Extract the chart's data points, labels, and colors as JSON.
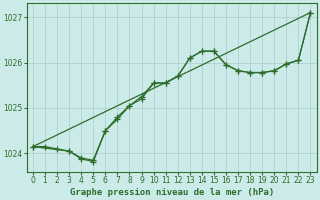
{
  "title": "Graphe pression niveau de la mer (hPa)",
  "bg_color": "#cceae8",
  "grid_color": "#aacccc",
  "line_color": "#2d6e2d",
  "xlim": [
    -0.5,
    23.5
  ],
  "ylim": [
    1023.6,
    1027.3
  ],
  "yticks": [
    1024,
    1025,
    1026,
    1027
  ],
  "xticks": [
    0,
    1,
    2,
    3,
    4,
    5,
    6,
    7,
    8,
    9,
    10,
    11,
    12,
    13,
    14,
    15,
    16,
    17,
    18,
    19,
    20,
    21,
    22,
    23
  ],
  "series1_x": [
    0,
    1,
    2,
    3,
    4,
    5,
    6,
    7,
    8,
    9,
    10,
    11,
    12,
    13,
    14,
    15,
    16,
    17,
    18,
    19,
    20,
    21,
    22,
    23
  ],
  "series1_y": [
    1024.15,
    1024.15,
    1024.1,
    1024.05,
    1023.9,
    1023.85,
    1024.5,
    1024.75,
    1025.05,
    1025.2,
    1025.55,
    1025.55,
    1025.7,
    1026.1,
    1026.25,
    1026.25,
    1025.95,
    1025.82,
    1025.78,
    1025.78,
    1025.82,
    1025.97,
    1026.05,
    1027.1
  ],
  "series2_x": [
    0,
    3,
    4,
    5,
    6,
    7,
    8,
    9,
    10,
    11,
    12,
    13,
    14,
    15,
    16,
    17,
    18,
    19,
    20,
    21,
    22,
    23
  ],
  "series2_y": [
    1024.15,
    1024.05,
    1023.88,
    1023.82,
    1024.5,
    1024.8,
    1025.05,
    1025.25,
    1025.55,
    1025.55,
    1025.7,
    1026.1,
    1026.25,
    1026.25,
    1025.95,
    1025.82,
    1025.78,
    1025.78,
    1025.82,
    1025.97,
    1026.05,
    1027.1
  ],
  "series3_x": [
    0,
    23
  ],
  "series3_y": [
    1024.15,
    1027.1
  ],
  "tick_fontsize": 5.5,
  "label_fontsize": 6.5
}
